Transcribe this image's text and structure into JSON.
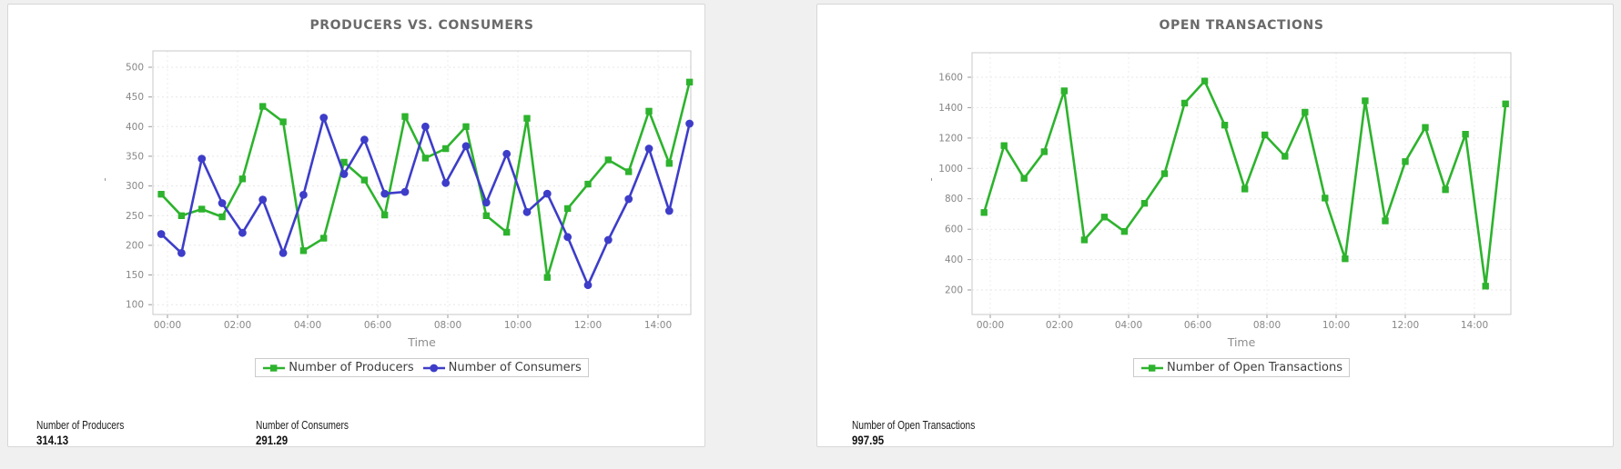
{
  "panels": [
    {
      "title": "PRODUCERS VS. CONSUMERS",
      "stats": [
        {
          "label": "Number of Producers",
          "value": "314.13"
        },
        {
          "label": "Number of Consumers",
          "value": "291.29"
        }
      ]
    },
    {
      "title": "OPEN TRANSACTIONS",
      "stats": [
        {
          "label": "Number of Open Transactions",
          "value": "997.95"
        }
      ]
    }
  ],
  "chart_data": [
    {
      "type": "line",
      "title": "PRODUCERS VS. CONSUMERS",
      "xlabel": "Time",
      "y_axis_label": "'",
      "grid": true,
      "legend_position": "bottom",
      "x_ticks": [
        "00:00",
        "02:00",
        "04:00",
        "06:00",
        "08:00",
        "10:00",
        "12:00",
        "14:00"
      ],
      "x_tick_hours": [
        0,
        2,
        4,
        6,
        8,
        10,
        12,
        14
      ],
      "xlim_hours": [
        -0.42,
        14.94
      ],
      "y_ticks": [
        500,
        450,
        400,
        350,
        300,
        250,
        200,
        150,
        100
      ],
      "ylim": [
        85,
        528
      ],
      "x_hours": [
        -0.18,
        0.4,
        0.98,
        1.56,
        2.14,
        2.72,
        3.3,
        3.88,
        4.46,
        5.04,
        5.62,
        6.2,
        6.78,
        7.36,
        7.94,
        8.52,
        9.1,
        9.68,
        10.26,
        10.84,
        11.42,
        12.0,
        12.58,
        13.16,
        13.74,
        14.32,
        14.9
      ],
      "series": [
        {
          "name": "Number of Producers",
          "color": "#2db32d",
          "marker": "square",
          "values": [
            286,
            250,
            261,
            248,
            312,
            434,
            408,
            191,
            212,
            340,
            310,
            251,
            417,
            347,
            363,
            400,
            250,
            222,
            414,
            146,
            262,
            303,
            344,
            324,
            426,
            338,
            475
          ]
        },
        {
          "name": "Number of Consumers",
          "color": "#3d3dc9",
          "marker": "circle",
          "values": [
            219,
            187,
            346,
            271,
            221,
            277,
            187,
            285,
            415,
            320,
            378,
            287,
            290,
            400,
            305,
            367,
            272,
            354,
            256,
            287,
            214,
            133,
            209,
            278,
            363,
            258,
            405
          ]
        }
      ]
    },
    {
      "type": "line",
      "title": "OPEN TRANSACTIONS",
      "xlabel": "Time",
      "y_axis_label": "'",
      "grid": true,
      "legend_position": "bottom",
      "x_ticks": [
        "00:00",
        "02:00",
        "04:00",
        "06:00",
        "08:00",
        "10:00",
        "12:00",
        "14:00"
      ],
      "x_tick_hours": [
        0,
        2,
        4,
        6,
        8,
        10,
        12,
        14
      ],
      "xlim_hours": [
        -0.53,
        15.05
      ],
      "y_ticks": [
        1600,
        1400,
        1200,
        1000,
        800,
        600,
        400,
        200
      ],
      "ylim": [
        40,
        1760
      ],
      "x_hours": [
        -0.18,
        0.4,
        0.98,
        1.56,
        2.14,
        2.72,
        3.3,
        3.88,
        4.46,
        5.04,
        5.62,
        6.2,
        6.78,
        7.36,
        7.94,
        8.52,
        9.1,
        9.68,
        10.26,
        10.84,
        11.42,
        12.0,
        12.58,
        13.16,
        13.74,
        14.32,
        14.9
      ],
      "series": [
        {
          "name": "Number of Open Transactions",
          "color": "#2db32d",
          "marker": "square",
          "values": [
            710,
            1150,
            935,
            1110,
            1510,
            530,
            680,
            585,
            770,
            965,
            1430,
            1575,
            1285,
            865,
            1220,
            1080,
            1370,
            805,
            405,
            1445,
            655,
            1045,
            1270,
            860,
            1225,
            225,
            1425
          ]
        }
      ]
    }
  ]
}
